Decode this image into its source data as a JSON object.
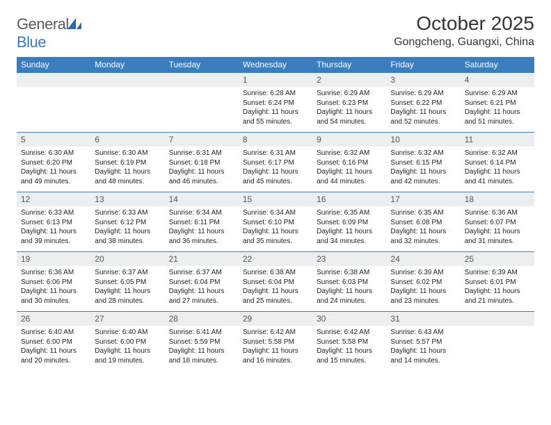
{
  "brand": {
    "name_a": "General",
    "name_b": "Blue"
  },
  "title": "October 2025",
  "location": "Gongcheng, Guangxi, China",
  "colors": {
    "header_bg": "#3a7ebf",
    "header_text": "#ffffff",
    "daynum_bg": "#eceeef",
    "cell_border": "#3a7ebf",
    "logo_gray": "#5a5a5a",
    "logo_blue": "#3a7ab8"
  },
  "day_names": [
    "Sunday",
    "Monday",
    "Tuesday",
    "Wednesday",
    "Thursday",
    "Friday",
    "Saturday"
  ],
  "weeks": [
    [
      {
        "n": "",
        "sr": "",
        "ss": "",
        "dl": ""
      },
      {
        "n": "",
        "sr": "",
        "ss": "",
        "dl": ""
      },
      {
        "n": "",
        "sr": "",
        "ss": "",
        "dl": ""
      },
      {
        "n": "1",
        "sr": "Sunrise: 6:28 AM",
        "ss": "Sunset: 6:24 PM",
        "dl": "Daylight: 11 hours and 55 minutes."
      },
      {
        "n": "2",
        "sr": "Sunrise: 6:29 AM",
        "ss": "Sunset: 6:23 PM",
        "dl": "Daylight: 11 hours and 54 minutes."
      },
      {
        "n": "3",
        "sr": "Sunrise: 6:29 AM",
        "ss": "Sunset: 6:22 PM",
        "dl": "Daylight: 11 hours and 52 minutes."
      },
      {
        "n": "4",
        "sr": "Sunrise: 6:29 AM",
        "ss": "Sunset: 6:21 PM",
        "dl": "Daylight: 11 hours and 51 minutes."
      }
    ],
    [
      {
        "n": "5",
        "sr": "Sunrise: 6:30 AM",
        "ss": "Sunset: 6:20 PM",
        "dl": "Daylight: 11 hours and 49 minutes."
      },
      {
        "n": "6",
        "sr": "Sunrise: 6:30 AM",
        "ss": "Sunset: 6:19 PM",
        "dl": "Daylight: 11 hours and 48 minutes."
      },
      {
        "n": "7",
        "sr": "Sunrise: 6:31 AM",
        "ss": "Sunset: 6:18 PM",
        "dl": "Daylight: 11 hours and 46 minutes."
      },
      {
        "n": "8",
        "sr": "Sunrise: 6:31 AM",
        "ss": "Sunset: 6:17 PM",
        "dl": "Daylight: 11 hours and 45 minutes."
      },
      {
        "n": "9",
        "sr": "Sunrise: 6:32 AM",
        "ss": "Sunset: 6:16 PM",
        "dl": "Daylight: 11 hours and 44 minutes."
      },
      {
        "n": "10",
        "sr": "Sunrise: 6:32 AM",
        "ss": "Sunset: 6:15 PM",
        "dl": "Daylight: 11 hours and 42 minutes."
      },
      {
        "n": "11",
        "sr": "Sunrise: 6:32 AM",
        "ss": "Sunset: 6:14 PM",
        "dl": "Daylight: 11 hours and 41 minutes."
      }
    ],
    [
      {
        "n": "12",
        "sr": "Sunrise: 6:33 AM",
        "ss": "Sunset: 6:13 PM",
        "dl": "Daylight: 11 hours and 39 minutes."
      },
      {
        "n": "13",
        "sr": "Sunrise: 6:33 AM",
        "ss": "Sunset: 6:12 PM",
        "dl": "Daylight: 11 hours and 38 minutes."
      },
      {
        "n": "14",
        "sr": "Sunrise: 6:34 AM",
        "ss": "Sunset: 6:11 PM",
        "dl": "Daylight: 11 hours and 36 minutes."
      },
      {
        "n": "15",
        "sr": "Sunrise: 6:34 AM",
        "ss": "Sunset: 6:10 PM",
        "dl": "Daylight: 11 hours and 35 minutes."
      },
      {
        "n": "16",
        "sr": "Sunrise: 6:35 AM",
        "ss": "Sunset: 6:09 PM",
        "dl": "Daylight: 11 hours and 34 minutes."
      },
      {
        "n": "17",
        "sr": "Sunrise: 6:35 AM",
        "ss": "Sunset: 6:08 PM",
        "dl": "Daylight: 11 hours and 32 minutes."
      },
      {
        "n": "18",
        "sr": "Sunrise: 6:36 AM",
        "ss": "Sunset: 6:07 PM",
        "dl": "Daylight: 11 hours and 31 minutes."
      }
    ],
    [
      {
        "n": "19",
        "sr": "Sunrise: 6:36 AM",
        "ss": "Sunset: 6:06 PM",
        "dl": "Daylight: 11 hours and 30 minutes."
      },
      {
        "n": "20",
        "sr": "Sunrise: 6:37 AM",
        "ss": "Sunset: 6:05 PM",
        "dl": "Daylight: 11 hours and 28 minutes."
      },
      {
        "n": "21",
        "sr": "Sunrise: 6:37 AM",
        "ss": "Sunset: 6:04 PM",
        "dl": "Daylight: 11 hours and 27 minutes."
      },
      {
        "n": "22",
        "sr": "Sunrise: 6:38 AM",
        "ss": "Sunset: 6:04 PM",
        "dl": "Daylight: 11 hours and 25 minutes."
      },
      {
        "n": "23",
        "sr": "Sunrise: 6:38 AM",
        "ss": "Sunset: 6:03 PM",
        "dl": "Daylight: 11 hours and 24 minutes."
      },
      {
        "n": "24",
        "sr": "Sunrise: 6:39 AM",
        "ss": "Sunset: 6:02 PM",
        "dl": "Daylight: 11 hours and 23 minutes."
      },
      {
        "n": "25",
        "sr": "Sunrise: 6:39 AM",
        "ss": "Sunset: 6:01 PM",
        "dl": "Daylight: 11 hours and 21 minutes."
      }
    ],
    [
      {
        "n": "26",
        "sr": "Sunrise: 6:40 AM",
        "ss": "Sunset: 6:00 PM",
        "dl": "Daylight: 11 hours and 20 minutes."
      },
      {
        "n": "27",
        "sr": "Sunrise: 6:40 AM",
        "ss": "Sunset: 6:00 PM",
        "dl": "Daylight: 11 hours and 19 minutes."
      },
      {
        "n": "28",
        "sr": "Sunrise: 6:41 AM",
        "ss": "Sunset: 5:59 PM",
        "dl": "Daylight: 11 hours and 18 minutes."
      },
      {
        "n": "29",
        "sr": "Sunrise: 6:42 AM",
        "ss": "Sunset: 5:58 PM",
        "dl": "Daylight: 11 hours and 16 minutes."
      },
      {
        "n": "30",
        "sr": "Sunrise: 6:42 AM",
        "ss": "Sunset: 5:58 PM",
        "dl": "Daylight: 11 hours and 15 minutes."
      },
      {
        "n": "31",
        "sr": "Sunrise: 6:43 AM",
        "ss": "Sunset: 5:57 PM",
        "dl": "Daylight: 11 hours and 14 minutes."
      },
      {
        "n": "",
        "sr": "",
        "ss": "",
        "dl": ""
      }
    ]
  ]
}
